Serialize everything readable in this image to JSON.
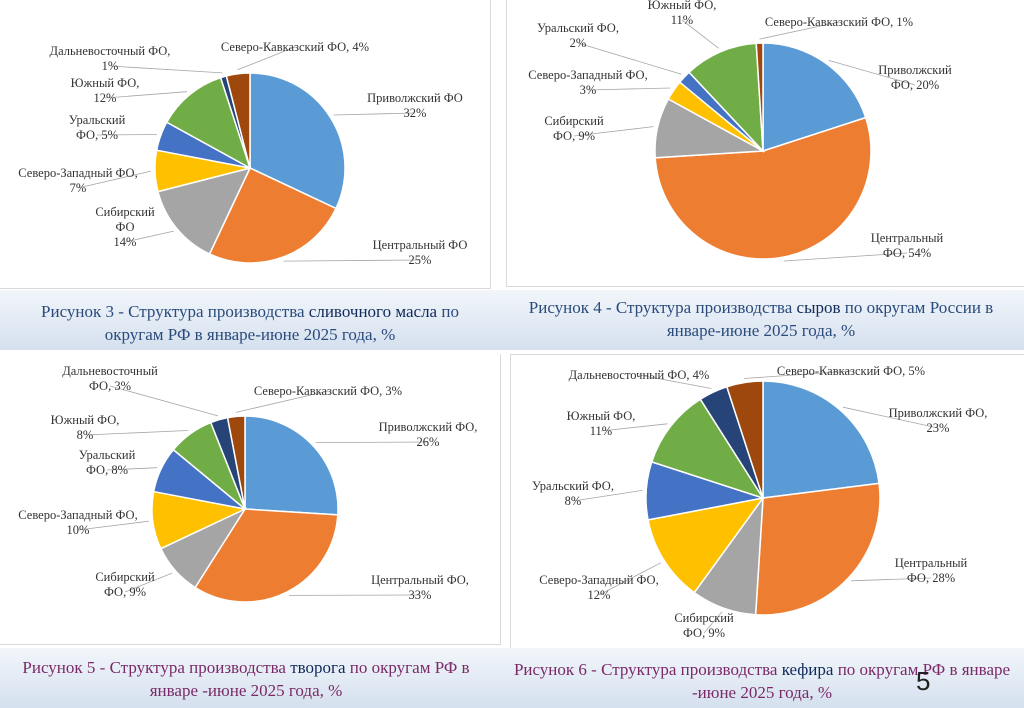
{
  "colors": {
    "Приволжский": "#5b9bd5",
    "Центральный": "#ed7d31",
    "Сибирский": "#a5a5a5",
    "Северо-Западный": "#ffc000",
    "Уральский": "#4472c4",
    "Южный": "#70ad47",
    "Дальневосточный": "#264478",
    "Северо-Кавказский": "#9e480e"
  },
  "chart_data": [
    {
      "type": "pie",
      "id": "butter",
      "caption": {
        "prefix": "Рисунок 3 - Структура производства ",
        "keyword": "сливочного масла",
        "suffix": " по округам РФ в январе-июне 2025 года, %"
      },
      "slices": [
        {
          "key": "Приволжский",
          "value": 32,
          "label": [
            "Приволжский ФО",
            "32%"
          ]
        },
        {
          "key": "Центральный",
          "value": 25,
          "label": [
            "Центральный ФО",
            "25%"
          ]
        },
        {
          "key": "Сибирский",
          "value": 14,
          "label": [
            "Сибирский",
            "ФО",
            "14%"
          ]
        },
        {
          "key": "Северо-Западный",
          "value": 7,
          "label": [
            "Северо-Западный ФО,",
            "7%"
          ]
        },
        {
          "key": "Уральский",
          "value": 5,
          "label": [
            "Уральский",
            "ФО, 5%"
          ]
        },
        {
          "key": "Южный",
          "value": 12,
          "label": [
            "Южный ФО,",
            "12%"
          ]
        },
        {
          "key": "Дальневосточный",
          "value": 1,
          "label": [
            "Дальневосточный ФО,",
            "1%"
          ]
        },
        {
          "key": "Северо-Кавказский",
          "value": 4,
          "label": [
            "Северо-Кавказский ФО, 4%"
          ]
        }
      ]
    },
    {
      "type": "pie",
      "id": "cheese",
      "caption": {
        "prefix": "Рисунок 4 - Структура производства ",
        "keyword": "сыров",
        "suffix": " по округам России в январе-июне 2025 года, %"
      },
      "slices": [
        {
          "key": "Приволжский",
          "value": 20,
          "label": [
            "Приволжский",
            "ФО, 20%"
          ]
        },
        {
          "key": "Центральный",
          "value": 54,
          "label": [
            "Центральный",
            "ФО, 54%"
          ]
        },
        {
          "key": "Сибирский",
          "value": 9,
          "label": [
            "Сибирский",
            "ФО, 9%"
          ]
        },
        {
          "key": "Северо-Западный",
          "value": 3,
          "label": [
            "Северо-Западный ФО,",
            "3%"
          ]
        },
        {
          "key": "Уральский",
          "value": 2,
          "label": [
            "Уральский ФО,",
            "2%"
          ]
        },
        {
          "key": "Южный",
          "value": 11,
          "label": [
            "Южный ФО,",
            "11%"
          ]
        },
        {
          "key": "Северо-Кавказский",
          "value": 1,
          "label": [
            "Северо-Кавказский ФО, 1%"
          ]
        }
      ]
    },
    {
      "type": "pie",
      "id": "tvorog",
      "caption": {
        "prefix": "Рисунок 5 - Структура производства ",
        "keyword": "творога",
        "suffix": " по округам РФ в январе -июне 2025 года, %"
      },
      "slices": [
        {
          "key": "Приволжский",
          "value": 26,
          "label": [
            "Приволжский ФО,",
            "26%"
          ]
        },
        {
          "key": "Центральный",
          "value": 33,
          "label": [
            "Центральный ФО,",
            "33%"
          ]
        },
        {
          "key": "Сибирский",
          "value": 9,
          "label": [
            "Сибирский",
            "ФО, 9%"
          ]
        },
        {
          "key": "Северо-Западный",
          "value": 10,
          "label": [
            "Северо-Западный ФО,",
            "10%"
          ]
        },
        {
          "key": "Уральский",
          "value": 8,
          "label": [
            "Уральский",
            "ФО, 8%"
          ]
        },
        {
          "key": "Южный",
          "value": 8,
          "label": [
            "Южный ФО,",
            "8%"
          ]
        },
        {
          "key": "Дальневосточный",
          "value": 3,
          "label": [
            "Дальневосточный",
            "ФО, 3%"
          ]
        },
        {
          "key": "Северо-Кавказский",
          "value": 3,
          "label": [
            "Северо-Кавказский ФО, 3%"
          ]
        }
      ]
    },
    {
      "type": "pie",
      "id": "kefir",
      "caption": {
        "prefix": "Рисунок 6 - Структура производства ",
        "keyword": "кефира",
        "suffix": " по округам РФ в январе -июне 2025 года, %"
      },
      "slices": [
        {
          "key": "Приволжский",
          "value": 23,
          "label": [
            "Приволжский ФО,",
            "23%"
          ]
        },
        {
          "key": "Центральный",
          "value": 28,
          "label": [
            "Центральный",
            "ФО, 28%"
          ]
        },
        {
          "key": "Сибирский",
          "value": 9,
          "label": [
            "Сибирский",
            "ФО, 9%"
          ]
        },
        {
          "key": "Северо-Западный",
          "value": 12,
          "label": [
            "Северо-Западный ФО,",
            "12%"
          ]
        },
        {
          "key": "Уральский",
          "value": 8,
          "label": [
            "Уральский ФО,",
            "8%"
          ]
        },
        {
          "key": "Южный",
          "value": 11,
          "label": [
            "Южный ФО,",
            "11%"
          ]
        },
        {
          "key": "Дальневосточный",
          "value": 4,
          "label": [
            "Дальневосточный ФО, 4%"
          ]
        },
        {
          "key": "Северо-Кавказский",
          "value": 5,
          "label": [
            "Северо-Кавказский ФО, 5%"
          ]
        }
      ]
    }
  ],
  "page_number": "5"
}
